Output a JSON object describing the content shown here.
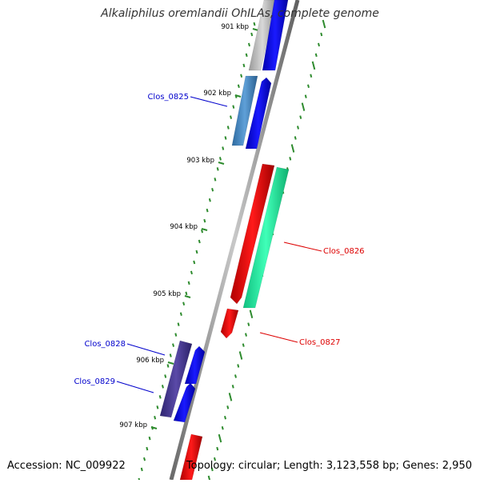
{
  "title": "Alkaliphilus oremlandii OhILAs, complete genome",
  "footer": {
    "accession": "Accession: NC_009922",
    "summary": "Topology: circular; Length: 3,123,558 bp; Genes: 2,950"
  },
  "axis_labels": [
    "901 kbp",
    "902 kbp",
    "903 kbp",
    "904 kbp",
    "905 kbp",
    "906 kbp",
    "907 kbp"
  ],
  "gene_labels": [
    {
      "name": "Clos_0825",
      "color": "#0000cc"
    },
    {
      "name": "Clos_0826",
      "color": "#dd0000"
    },
    {
      "name": "Clos_0827",
      "color": "#dd0000"
    },
    {
      "name": "Clos_0828",
      "color": "#0000cc"
    },
    {
      "name": "Clos_0829",
      "color": "#0000cc"
    }
  ],
  "colors": {
    "backbone": "#8c8c8c",
    "tick": "#2e8b2e",
    "forward": "#0000ee",
    "reverse": "#ee0000",
    "gray_feature": "#b8b8b8",
    "steel_feature": "#4a86c0",
    "teal_feature": "#1ef0a0",
    "purple_feature": "#4a3a8c"
  }
}
